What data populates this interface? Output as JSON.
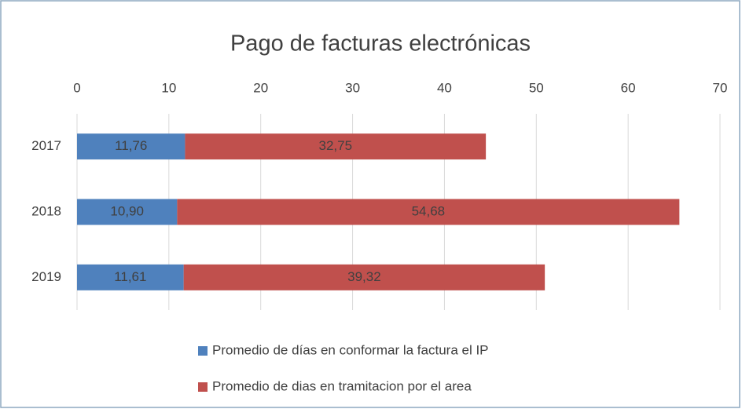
{
  "chart_data": {
    "type": "bar",
    "orientation": "horizontal",
    "stacked": true,
    "title": "Pago de facturas electrónicas",
    "categories": [
      "2017",
      "2018",
      "2019"
    ],
    "series": [
      {
        "name": "Promedio de días en conformar la factura el IP",
        "color": "#4f81bd",
        "values": [
          11.76,
          10.9,
          11.61
        ],
        "value_labels": [
          "11,76",
          "10,90",
          "11,61"
        ]
      },
      {
        "name": "Promedio de dias en tramitacion por el area",
        "color": "#c0504d",
        "values": [
          32.75,
          54.68,
          39.32
        ],
        "value_labels": [
          "32,75",
          "54,68",
          "39,32"
        ]
      }
    ],
    "xlim": [
      0,
      70
    ],
    "xticks": [
      0,
      10,
      20,
      30,
      40,
      50,
      60,
      70
    ],
    "grid": true,
    "legend": "bottom"
  }
}
